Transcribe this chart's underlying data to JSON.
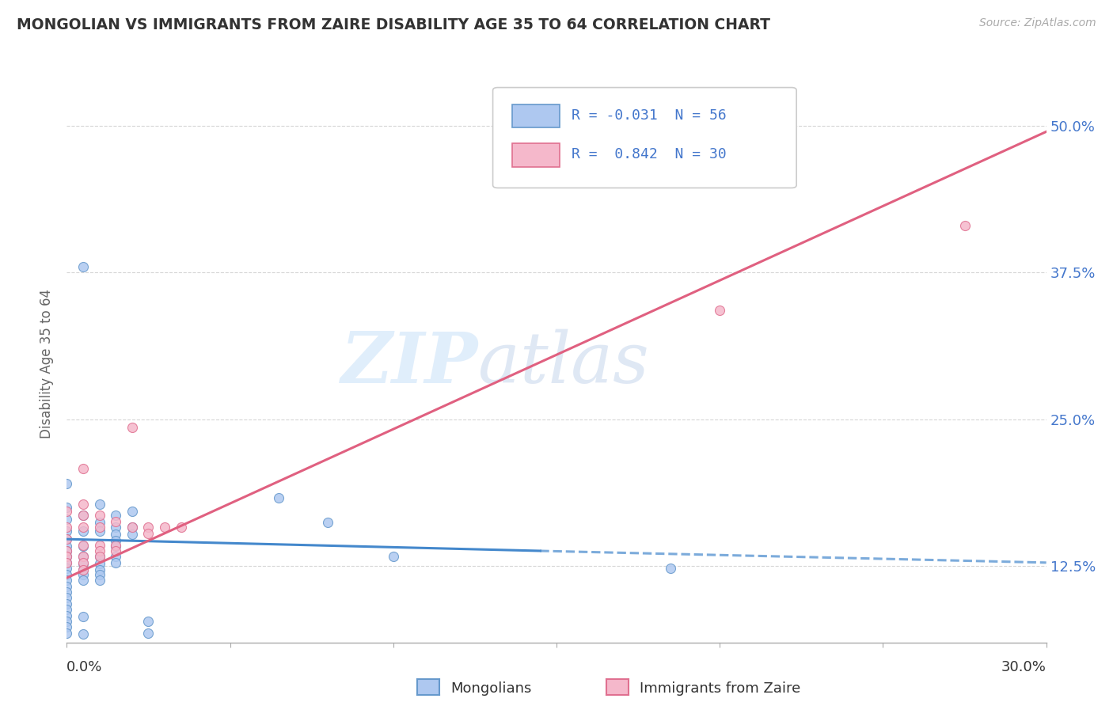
{
  "title": "MONGOLIAN VS IMMIGRANTS FROM ZAIRE DISABILITY AGE 35 TO 64 CORRELATION CHART",
  "source": "Source: ZipAtlas.com",
  "ylabel": "Disability Age 35 to 64",
  "legend_entry_blue": "R = -0.031  N = 56",
  "legend_entry_pink": "R =  0.842  N = 30",
  "yticks": [
    0.125,
    0.25,
    0.375,
    0.5
  ],
  "ytick_labels": [
    "12.5%",
    "25.0%",
    "37.5%",
    "50.0%"
  ],
  "xlim": [
    0.0,
    0.3
  ],
  "ylim": [
    0.06,
    0.535
  ],
  "blue_scatter": [
    [
      0.0,
      0.195
    ],
    [
      0.0,
      0.175
    ],
    [
      0.0,
      0.165
    ],
    [
      0.0,
      0.155
    ],
    [
      0.0,
      0.148
    ],
    [
      0.0,
      0.142
    ],
    [
      0.0,
      0.138
    ],
    [
      0.0,
      0.133
    ],
    [
      0.0,
      0.128
    ],
    [
      0.0,
      0.123
    ],
    [
      0.0,
      0.118
    ],
    [
      0.0,
      0.113
    ],
    [
      0.0,
      0.108
    ],
    [
      0.0,
      0.103
    ],
    [
      0.0,
      0.098
    ],
    [
      0.0,
      0.093
    ],
    [
      0.0,
      0.088
    ],
    [
      0.0,
      0.083
    ],
    [
      0.0,
      0.078
    ],
    [
      0.0,
      0.073
    ],
    [
      0.005,
      0.38
    ],
    [
      0.005,
      0.168
    ],
    [
      0.005,
      0.155
    ],
    [
      0.005,
      0.142
    ],
    [
      0.005,
      0.133
    ],
    [
      0.005,
      0.127
    ],
    [
      0.005,
      0.122
    ],
    [
      0.005,
      0.118
    ],
    [
      0.005,
      0.113
    ],
    [
      0.005,
      0.082
    ],
    [
      0.005,
      0.067
    ],
    [
      0.01,
      0.178
    ],
    [
      0.01,
      0.162
    ],
    [
      0.01,
      0.155
    ],
    [
      0.01,
      0.133
    ],
    [
      0.01,
      0.127
    ],
    [
      0.01,
      0.122
    ],
    [
      0.01,
      0.118
    ],
    [
      0.01,
      0.113
    ],
    [
      0.015,
      0.168
    ],
    [
      0.015,
      0.158
    ],
    [
      0.015,
      0.152
    ],
    [
      0.015,
      0.147
    ],
    [
      0.015,
      0.142
    ],
    [
      0.015,
      0.133
    ],
    [
      0.015,
      0.128
    ],
    [
      0.02,
      0.172
    ],
    [
      0.02,
      0.158
    ],
    [
      0.02,
      0.152
    ],
    [
      0.025,
      0.078
    ],
    [
      0.025,
      0.068
    ],
    [
      0.065,
      0.183
    ],
    [
      0.08,
      0.162
    ],
    [
      0.1,
      0.133
    ],
    [
      0.185,
      0.123
    ],
    [
      0.0,
      0.068
    ]
  ],
  "pink_scatter": [
    [
      0.0,
      0.172
    ],
    [
      0.0,
      0.158
    ],
    [
      0.0,
      0.148
    ],
    [
      0.0,
      0.138
    ],
    [
      0.0,
      0.133
    ],
    [
      0.0,
      0.128
    ],
    [
      0.005,
      0.208
    ],
    [
      0.005,
      0.178
    ],
    [
      0.005,
      0.168
    ],
    [
      0.005,
      0.158
    ],
    [
      0.005,
      0.143
    ],
    [
      0.005,
      0.133
    ],
    [
      0.005,
      0.128
    ],
    [
      0.005,
      0.122
    ],
    [
      0.01,
      0.168
    ],
    [
      0.01,
      0.158
    ],
    [
      0.01,
      0.143
    ],
    [
      0.01,
      0.138
    ],
    [
      0.01,
      0.133
    ],
    [
      0.015,
      0.163
    ],
    [
      0.015,
      0.143
    ],
    [
      0.015,
      0.138
    ],
    [
      0.02,
      0.243
    ],
    [
      0.02,
      0.158
    ],
    [
      0.025,
      0.158
    ],
    [
      0.025,
      0.153
    ],
    [
      0.03,
      0.158
    ],
    [
      0.035,
      0.158
    ],
    [
      0.2,
      0.343
    ],
    [
      0.275,
      0.415
    ]
  ],
  "blue_line_solid": {
    "x0": 0.0,
    "y0": 0.148,
    "x1": 0.145,
    "y1": 0.138
  },
  "blue_line_dashed": {
    "x0": 0.145,
    "y0": 0.138,
    "x1": 0.3,
    "y1": 0.128
  },
  "pink_line": {
    "x0": 0.0,
    "y0": 0.115,
    "x1": 0.3,
    "y1": 0.495
  },
  "watermark_zip": "ZIP",
  "watermark_atlas": "atlas",
  "bg_color": "#ffffff",
  "grid_color": "#cccccc",
  "scatter_size": 75,
  "title_color": "#333333",
  "axis_label_color": "#666666",
  "ytick_color": "#4477cc",
  "blue_fill": "#aec8f0",
  "blue_edge": "#6699cc",
  "pink_fill": "#f5b8cb",
  "pink_edge": "#e07090",
  "blue_line_color": "#4488cc",
  "pink_line_color": "#e06080"
}
